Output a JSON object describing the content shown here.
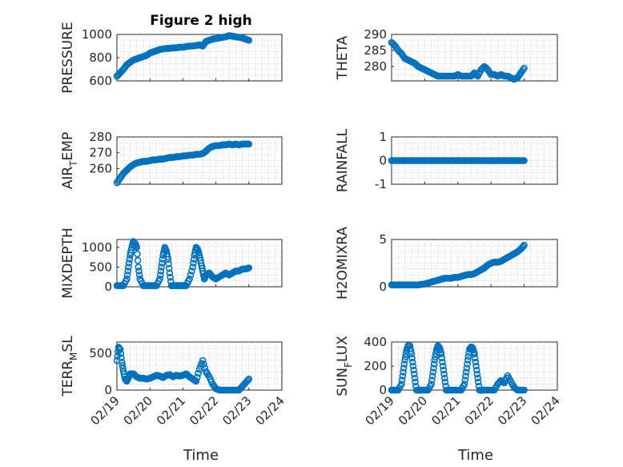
{
  "figure": {
    "title": "Figure 2 high",
    "marker_color": "#0072BD",
    "x_tick_labels": [
      "02/19",
      "02/20",
      "02/21",
      "02/22",
      "02/23",
      "02/24"
    ],
    "x_label": "Time"
  },
  "chart_data": [
    {
      "type": "scatter",
      "name": "pressure",
      "ylabel": "PRESSURE",
      "ylim": [
        600,
        1000
      ],
      "yticks": [
        600,
        800,
        1000
      ],
      "grid": true,
      "xlim": [
        0,
        5
      ],
      "x": [
        0,
        0.1,
        0.2,
        0.3,
        0.4,
        0.5,
        0.6,
        0.7,
        0.8,
        0.9,
        1.0,
        1.1,
        1.2,
        1.3,
        1.4,
        1.5,
        1.6,
        1.7,
        1.8,
        1.9,
        2.0,
        2.1,
        2.2,
        2.3,
        2.4,
        2.5,
        2.6,
        2.7,
        2.8,
        2.9,
        3.0,
        3.1,
        3.2,
        3.3,
        3.4,
        3.5,
        3.6,
        3.7,
        3.8,
        3.9,
        4.0
      ],
      "y": [
        640,
        670,
        700,
        740,
        760,
        780,
        790,
        800,
        810,
        820,
        840,
        850,
        860,
        870,
        875,
        880,
        880,
        885,
        885,
        890,
        890,
        895,
        900,
        900,
        905,
        910,
        900,
        940,
        950,
        960,
        965,
        970,
        975,
        980,
        990,
        985,
        980,
        975,
        970,
        960,
        950
      ]
    },
    {
      "type": "scatter",
      "name": "theta",
      "ylabel": "THETA",
      "ylim": [
        275.5,
        290
      ],
      "yticks": [
        280,
        285,
        290
      ],
      "grid": true,
      "xlim": [
        0,
        5
      ],
      "x": [
        0,
        0.1,
        0.2,
        0.3,
        0.4,
        0.5,
        0.6,
        0.7,
        0.8,
        0.9,
        1.0,
        1.1,
        1.2,
        1.3,
        1.4,
        1.5,
        1.6,
        1.7,
        1.8,
        1.9,
        2.0,
        2.1,
        2.2,
        2.3,
        2.4,
        2.5,
        2.6,
        2.7,
        2.8,
        2.9,
        3.0,
        3.1,
        3.2,
        3.3,
        3.4,
        3.5,
        3.6,
        3.7,
        3.8,
        3.9,
        4.0
      ],
      "y": [
        287.5,
        286.5,
        285,
        284,
        282.5,
        282,
        281.5,
        281,
        280,
        279.5,
        279,
        278.5,
        278,
        277.5,
        277,
        277,
        277,
        277,
        277,
        277,
        277.5,
        277,
        277,
        277,
        277,
        278,
        277,
        279,
        280,
        279,
        277.5,
        277.5,
        277,
        277.5,
        277,
        277,
        276.5,
        276,
        276.5,
        278,
        279.5
      ]
    },
    {
      "type": "scatter",
      "name": "air_temp",
      "ylabel": "AIR_TEMP",
      "ylabel_main": "AIR",
      "ylabel_sub": "T",
      "ylabel_rest": "EMP",
      "ylim": [
        250,
        280
      ],
      "yticks": [
        260,
        270,
        280
      ],
      "grid": true,
      "xlim": [
        0,
        5
      ],
      "x": [
        0,
        0.1,
        0.2,
        0.3,
        0.4,
        0.5,
        0.6,
        0.7,
        0.8,
        0.9,
        1.0,
        1.1,
        1.2,
        1.3,
        1.4,
        1.5,
        1.6,
        1.7,
        1.8,
        1.9,
        2.0,
        2.1,
        2.2,
        2.3,
        2.4,
        2.5,
        2.6,
        2.7,
        2.8,
        2.9,
        3.0,
        3.1,
        3.2,
        3.3,
        3.4,
        3.5,
        3.6,
        3.7,
        3.8,
        3.9,
        4.0
      ],
      "y": [
        251,
        254,
        257,
        259,
        261,
        262.5,
        263.5,
        264,
        264.5,
        264.5,
        265,
        265.5,
        265.5,
        266,
        266,
        266.5,
        267,
        267,
        267.5,
        267.5,
        268,
        268,
        268.5,
        268.5,
        269,
        269,
        269.5,
        271,
        273,
        274,
        274.5,
        274.5,
        275,
        275,
        275.5,
        275,
        275.5,
        275,
        275.5,
        275.5,
        275.5
      ]
    },
    {
      "type": "scatter",
      "name": "rainfall",
      "ylabel": "RAINFALL",
      "ylim": [
        -1,
        1
      ],
      "yticks": [
        -1,
        0,
        1
      ],
      "grid": true,
      "xlim": [
        0,
        5
      ],
      "x": [
        0,
        0.1,
        0.2,
        0.3,
        0.4,
        0.5,
        0.6,
        0.7,
        0.8,
        0.9,
        1.0,
        1.1,
        1.2,
        1.3,
        1.4,
        1.5,
        1.6,
        1.7,
        1.8,
        1.9,
        2.0,
        2.1,
        2.2,
        2.3,
        2.4,
        2.5,
        2.6,
        2.7,
        2.8,
        2.9,
        3.0,
        3.1,
        3.2,
        3.3,
        3.4,
        3.5,
        3.6,
        3.7,
        3.8,
        3.9,
        4.0
      ],
      "y": [
        0,
        0,
        0,
        0,
        0,
        0,
        0,
        0,
        0,
        0,
        0,
        0,
        0,
        0,
        0,
        0,
        0,
        0,
        0,
        0,
        0,
        0,
        0,
        0,
        0,
        0,
        0,
        0,
        0,
        0,
        0,
        0,
        0,
        0,
        0,
        0,
        0,
        0,
        0,
        0,
        0
      ]
    },
    {
      "type": "scatter",
      "name": "mixdepth",
      "ylabel": "MIXDEPTH",
      "ylim": [
        0,
        1200
      ],
      "yticks": [
        0,
        500,
        1000
      ],
      "grid": true,
      "xlim": [
        0,
        5
      ],
      "x": [
        0,
        0.1,
        0.2,
        0.3,
        0.35,
        0.4,
        0.45,
        0.5,
        0.55,
        0.6,
        0.65,
        0.7,
        0.8,
        0.9,
        1.0,
        1.1,
        1.2,
        1.3,
        1.35,
        1.4,
        1.45,
        1.5,
        1.55,
        1.6,
        1.65,
        1.7,
        1.8,
        1.9,
        2.0,
        2.1,
        2.2,
        2.3,
        2.35,
        2.4,
        2.45,
        2.5,
        2.55,
        2.6,
        2.65,
        2.7,
        2.8,
        2.9,
        3.0,
        3.1,
        3.2,
        3.3,
        3.4,
        3.5,
        3.6,
        3.7,
        3.8,
        3.9,
        4.0
      ],
      "y": [
        30,
        30,
        30,
        200,
        500,
        800,
        1000,
        1150,
        1100,
        1000,
        500,
        200,
        30,
        30,
        30,
        30,
        30,
        200,
        500,
        800,
        1000,
        900,
        700,
        350,
        30,
        30,
        30,
        30,
        30,
        30,
        200,
        500,
        800,
        1000,
        950,
        800,
        600,
        400,
        200,
        300,
        350,
        250,
        200,
        250,
        300,
        350,
        300,
        350,
        400,
        400,
        450,
        450,
        480
      ]
    },
    {
      "type": "scatter",
      "name": "h2omixra",
      "ylabel": "H2OMIXRA",
      "ylim": [
        0,
        5
      ],
      "yticks": [
        0,
        5
      ],
      "grid": true,
      "xlim": [
        0,
        5
      ],
      "x": [
        0,
        0.1,
        0.2,
        0.3,
        0.4,
        0.5,
        0.6,
        0.7,
        0.8,
        0.9,
        1.0,
        1.1,
        1.2,
        1.3,
        1.4,
        1.5,
        1.6,
        1.7,
        1.8,
        1.9,
        2.0,
        2.1,
        2.2,
        2.3,
        2.4,
        2.5,
        2.6,
        2.7,
        2.8,
        2.9,
        3.0,
        3.1,
        3.2,
        3.3,
        3.4,
        3.5,
        3.6,
        3.7,
        3.8,
        3.9,
        4.0
      ],
      "y": [
        0.2,
        0.2,
        0.2,
        0.2,
        0.2,
        0.2,
        0.2,
        0.2,
        0.2,
        0.25,
        0.3,
        0.4,
        0.5,
        0.6,
        0.7,
        0.8,
        0.9,
        0.9,
        0.9,
        1.0,
        1.0,
        1.1,
        1.2,
        1.3,
        1.3,
        1.4,
        1.6,
        1.8,
        2.0,
        2.3,
        2.5,
        2.6,
        2.6,
        2.7,
        2.9,
        3.1,
        3.3,
        3.5,
        3.7,
        4.0,
        4.4
      ]
    },
    {
      "type": "scatter",
      "name": "terr_msl",
      "ylabel": "TERR_MSL",
      "ylabel_main": "TERR",
      "ylabel_sub": "M",
      "ylabel_rest": "SL",
      "ylim": [
        0,
        650
      ],
      "yticks": [
        0,
        500
      ],
      "grid": true,
      "xlim": [
        0,
        5
      ],
      "x": [
        0,
        0.05,
        0.1,
        0.15,
        0.2,
        0.25,
        0.3,
        0.35,
        0.4,
        0.5,
        0.6,
        0.7,
        0.8,
        0.9,
        1.0,
        1.1,
        1.2,
        1.3,
        1.4,
        1.5,
        1.6,
        1.7,
        1.8,
        1.9,
        2.0,
        2.1,
        2.2,
        2.3,
        2.4,
        2.5,
        2.6,
        2.7,
        2.8,
        2.9,
        3.0,
        3.1,
        3.2,
        3.3,
        3.4,
        3.5,
        3.6,
        3.7,
        3.8,
        3.9,
        4.0
      ],
      "y": [
        400,
        580,
        550,
        380,
        250,
        150,
        120,
        170,
        220,
        220,
        180,
        160,
        160,
        150,
        160,
        180,
        200,
        190,
        170,
        200,
        210,
        180,
        200,
        190,
        200,
        220,
        180,
        150,
        120,
        280,
        400,
        250,
        180,
        80,
        20,
        0,
        0,
        0,
        0,
        0,
        0,
        0,
        50,
        100,
        150
      ]
    },
    {
      "type": "scatter",
      "name": "sun_flux",
      "ylabel": "SUN_FLUX",
      "ylabel_main": "SUN",
      "ylabel_sub": "F",
      "ylabel_rest": "LUX",
      "ylim": [
        0,
        400
      ],
      "yticks": [
        0,
        200,
        400
      ],
      "grid": true,
      "xlim": [
        0,
        5
      ],
      "x": [
        0,
        0.1,
        0.2,
        0.3,
        0.35,
        0.4,
        0.45,
        0.5,
        0.55,
        0.6,
        0.65,
        0.7,
        0.75,
        0.8,
        0.85,
        0.9,
        1.0,
        1.1,
        1.2,
        1.25,
        1.3,
        1.35,
        1.4,
        1.45,
        1.5,
        1.55,
        1.6,
        1.65,
        1.7,
        1.75,
        1.8,
        1.9,
        2.0,
        2.1,
        2.2,
        2.25,
        2.3,
        2.35,
        2.4,
        2.45,
        2.5,
        2.55,
        2.6,
        2.65,
        2.7,
        2.75,
        2.8,
        2.9,
        3.0,
        3.1,
        3.2,
        3.3,
        3.4,
        3.5,
        3.6,
        3.7,
        3.8,
        3.9,
        4.0
      ],
      "y": [
        0,
        0,
        0,
        50,
        150,
        250,
        330,
        370,
        370,
        300,
        200,
        100,
        0,
        0,
        0,
        0,
        0,
        0,
        50,
        150,
        250,
        330,
        370,
        350,
        300,
        200,
        100,
        0,
        0,
        0,
        0,
        0,
        0,
        0,
        50,
        150,
        250,
        340,
        360,
        350,
        300,
        200,
        100,
        0,
        0,
        0,
        0,
        0,
        0,
        0,
        50,
        80,
        60,
        120,
        70,
        20,
        0,
        0,
        0
      ]
    }
  ]
}
